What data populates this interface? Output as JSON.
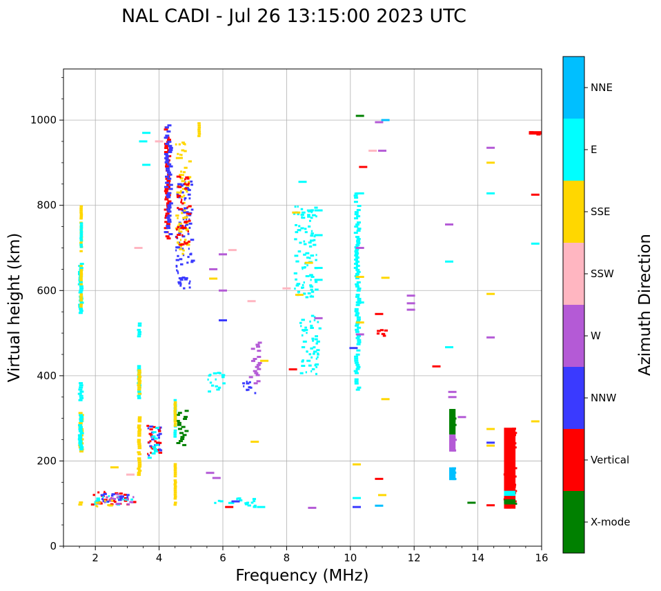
{
  "chart_data": {
    "type": "scatter",
    "title": "NAL CADI - Jul 26 13:15:00 2023 UTC",
    "xlabel": "Frequency (MHz)",
    "ylabel": "Virtual height (km)",
    "xlim": [
      1,
      16
    ],
    "ylim": [
      0,
      1120
    ],
    "xticks": [
      2,
      4,
      6,
      8,
      10,
      12,
      14,
      16
    ],
    "yticks": [
      0,
      200,
      400,
      600,
      800,
      1000
    ],
    "grid": true,
    "colorbar": {
      "label": "Azimuth Direction",
      "categories": [
        "X-mode",
        "Vertical",
        "NNW",
        "W",
        "SSW",
        "SSE",
        "E",
        "NNE"
      ],
      "colors": [
        "#008000",
        "#ff0000",
        "#3a3aff",
        "#b45ad6",
        "#ffb6c1",
        "#ffd700",
        "#00ffff",
        "#00bfff"
      ]
    },
    "echo_segments": [
      {
        "f0": 1.45,
        "f1": 1.6,
        "h0": 220,
        "h1": 315,
        "dir": "SSE"
      },
      {
        "f0": 1.45,
        "f1": 1.6,
        "h0": 225,
        "h1": 310,
        "dir": "E"
      },
      {
        "f0": 1.45,
        "f1": 1.6,
        "h0": 340,
        "h1": 390,
        "dir": "E"
      },
      {
        "f0": 1.45,
        "f1": 1.6,
        "h0": 545,
        "h1": 665,
        "dir": "E"
      },
      {
        "f0": 1.5,
        "f1": 1.6,
        "h0": 560,
        "h1": 660,
        "dir": "SSE"
      },
      {
        "f0": 1.5,
        "f1": 1.6,
        "h0": 690,
        "h1": 800,
        "dir": "SSE"
      },
      {
        "f0": 1.5,
        "f1": 1.6,
        "h0": 700,
        "h1": 760,
        "dir": "E"
      },
      {
        "f0": 1.45,
        "f1": 1.6,
        "h0": 90,
        "h1": 105,
        "dir": "SSE"
      },
      {
        "f0": 1.8,
        "f1": 3.3,
        "h0": 95,
        "h1": 130,
        "dir": "Vertical"
      },
      {
        "f0": 1.9,
        "f1": 3.2,
        "h0": 95,
        "h1": 120,
        "dir": "E"
      },
      {
        "f0": 2.0,
        "f1": 3.3,
        "h0": 95,
        "h1": 125,
        "dir": "W"
      },
      {
        "f0": 2.1,
        "f1": 3.1,
        "h0": 100,
        "h1": 125,
        "dir": "NNW"
      },
      {
        "f0": 2.0,
        "f1": 2.9,
        "h0": 90,
        "h1": 110,
        "dir": "SSE"
      },
      {
        "f0": 3.3,
        "f1": 3.42,
        "h0": 165,
        "h1": 305,
        "dir": "SSE"
      },
      {
        "f0": 3.3,
        "f1": 3.42,
        "h0": 345,
        "h1": 425,
        "dir": "E"
      },
      {
        "f0": 3.3,
        "f1": 3.42,
        "h0": 490,
        "h1": 525,
        "dir": "E"
      },
      {
        "f0": 3.3,
        "f1": 3.42,
        "h0": 355,
        "h1": 415,
        "dir": "SSE"
      },
      {
        "f0": 3.6,
        "f1": 4.1,
        "h0": 205,
        "h1": 285,
        "dir": "NNW"
      },
      {
        "f0": 3.6,
        "f1": 4.1,
        "h0": 205,
        "h1": 285,
        "dir": "Vertical"
      },
      {
        "f0": 3.6,
        "f1": 4.0,
        "h0": 200,
        "h1": 280,
        "dir": "E"
      },
      {
        "f0": 4.15,
        "f1": 4.35,
        "h0": 720,
        "h1": 990,
        "dir": "Vertical"
      },
      {
        "f0": 4.15,
        "f1": 4.4,
        "h0": 730,
        "h1": 990,
        "dir": "NNW"
      },
      {
        "f0": 4.45,
        "f1": 4.55,
        "h0": 95,
        "h1": 195,
        "dir": "SSE"
      },
      {
        "f0": 4.45,
        "f1": 4.55,
        "h0": 250,
        "h1": 350,
        "dir": "E"
      },
      {
        "f0": 4.5,
        "f1": 4.9,
        "h0": 235,
        "h1": 320,
        "dir": "X-mode"
      },
      {
        "f0": 4.45,
        "f1": 4.55,
        "h0": 280,
        "h1": 340,
        "dir": "SSE"
      },
      {
        "f0": 4.5,
        "f1": 5.1,
        "h0": 600,
        "h1": 860,
        "dir": "NNW"
      },
      {
        "f0": 4.5,
        "f1": 5.0,
        "h0": 680,
        "h1": 950,
        "dir": "SSE"
      },
      {
        "f0": 4.5,
        "f1": 5.0,
        "h0": 700,
        "h1": 870,
        "dir": "Vertical"
      },
      {
        "f0": 5.2,
        "f1": 5.3,
        "h0": 960,
        "h1": 1000,
        "dir": "SSE"
      },
      {
        "f0": 5.5,
        "f1": 6.1,
        "h0": 360,
        "h1": 410,
        "dir": "E"
      },
      {
        "f0": 6.6,
        "f1": 7.1,
        "h0": 355,
        "h1": 395,
        "dir": "NNW"
      },
      {
        "f0": 6.8,
        "f1": 7.2,
        "h0": 380,
        "h1": 480,
        "dir": "W"
      },
      {
        "f0": 5.7,
        "f1": 7.2,
        "h0": 88,
        "h1": 115,
        "dir": "E"
      },
      {
        "f0": 8.4,
        "f1": 9.1,
        "h0": 400,
        "h1": 545,
        "dir": "E"
      },
      {
        "f0": 8.2,
        "f1": 9.0,
        "h0": 580,
        "h1": 800,
        "dir": "E"
      },
      {
        "f0": 10.1,
        "f1": 10.3,
        "h0": 360,
        "h1": 830,
        "dir": "E"
      },
      {
        "f0": 10.6,
        "f1": 11.2,
        "h0": 490,
        "h1": 510,
        "dir": "Vertical"
      },
      {
        "f0": 13.1,
        "f1": 13.3,
        "h0": 262,
        "h1": 322,
        "dir": "X-mode"
      },
      {
        "f0": 13.1,
        "f1": 13.3,
        "h0": 222,
        "h1": 262,
        "dir": "W"
      },
      {
        "f0": 13.1,
        "f1": 13.3,
        "h0": 155,
        "h1": 185,
        "dir": "NNE"
      },
      {
        "f0": 14.8,
        "f1": 15.2,
        "h0": 88,
        "h1": 278,
        "dir": "Vertical"
      },
      {
        "f0": 14.8,
        "f1": 15.2,
        "h0": 118,
        "h1": 130,
        "dir": "E"
      },
      {
        "f0": 14.8,
        "f1": 15.2,
        "h0": 98,
        "h1": 110,
        "dir": "X-mode"
      },
      {
        "f0": 15.6,
        "f1": 16.0,
        "h0": 966,
        "h1": 974,
        "dir": "Vertical"
      }
    ],
    "echo_ticks": [
      {
        "f": 2.6,
        "h": 185,
        "dir": "SSE"
      },
      {
        "f": 3.1,
        "h": 168,
        "dir": "SSW"
      },
      {
        "f": 3.35,
        "h": 700,
        "dir": "SSW"
      },
      {
        "f": 3.6,
        "h": 970,
        "dir": "E"
      },
      {
        "f": 3.5,
        "h": 950,
        "dir": "E"
      },
      {
        "f": 3.6,
        "h": 895,
        "dir": "E"
      },
      {
        "f": 4.0,
        "h": 950,
        "dir": "SSW"
      },
      {
        "f": 6.0,
        "h": 530,
        "dir": "NNW"
      },
      {
        "f": 6.0,
        "h": 600,
        "dir": "W"
      },
      {
        "f": 6.3,
        "h": 695,
        "dir": "SSW"
      },
      {
        "f": 6.4,
        "h": 105,
        "dir": "NNW"
      },
      {
        "f": 8.3,
        "h": 783,
        "dir": "SSE"
      },
      {
        "f": 8.4,
        "h": 590,
        "dir": "SSE"
      },
      {
        "f": 8.2,
        "h": 415,
        "dir": "Vertical"
      },
      {
        "f": 8.8,
        "h": 90,
        "dir": "W"
      },
      {
        "f": 8.5,
        "h": 855,
        "dir": "E"
      },
      {
        "f": 8.7,
        "h": 665,
        "dir": "SSE"
      },
      {
        "f": 9.0,
        "h": 535,
        "dir": "W"
      },
      {
        "f": 10.1,
        "h": 465,
        "dir": "NNW"
      },
      {
        "f": 10.3,
        "h": 1010,
        "dir": "X-mode"
      },
      {
        "f": 10.3,
        "h": 700,
        "dir": "W"
      },
      {
        "f": 10.3,
        "h": 632,
        "dir": "SSE"
      },
      {
        "f": 10.4,
        "h": 890,
        "dir": "Vertical"
      },
      {
        "f": 10.7,
        "h": 928,
        "dir": "SSW"
      },
      {
        "f": 10.9,
        "h": 995,
        "dir": "W"
      },
      {
        "f": 11.0,
        "h": 928,
        "dir": "W"
      },
      {
        "f": 11.1,
        "h": 1000,
        "dir": "NNE"
      },
      {
        "f": 11.1,
        "h": 630,
        "dir": "SSE"
      },
      {
        "f": 11.1,
        "h": 345,
        "dir": "SSE"
      },
      {
        "f": 10.9,
        "h": 158,
        "dir": "Vertical"
      },
      {
        "f": 11.0,
        "h": 120,
        "dir": "SSE"
      },
      {
        "f": 10.9,
        "h": 95,
        "dir": "NNE"
      },
      {
        "f": 11.9,
        "h": 588,
        "dir": "W"
      },
      {
        "f": 11.9,
        "h": 570,
        "dir": "W"
      },
      {
        "f": 11.9,
        "h": 555,
        "dir": "W"
      },
      {
        "f": 12.7,
        "h": 422,
        "dir": "Vertical"
      },
      {
        "f": 13.1,
        "h": 755,
        "dir": "W"
      },
      {
        "f": 13.1,
        "h": 668,
        "dir": "E"
      },
      {
        "f": 13.1,
        "h": 467,
        "dir": "E"
      },
      {
        "f": 13.2,
        "h": 362,
        "dir": "W"
      },
      {
        "f": 13.2,
        "h": 350,
        "dir": "W"
      },
      {
        "f": 13.5,
        "h": 303,
        "dir": "W"
      },
      {
        "f": 13.8,
        "h": 102,
        "dir": "X-mode"
      },
      {
        "f": 14.4,
        "h": 935,
        "dir": "W"
      },
      {
        "f": 14.4,
        "h": 900,
        "dir": "SSE"
      },
      {
        "f": 14.4,
        "h": 828,
        "dir": "E"
      },
      {
        "f": 14.4,
        "h": 592,
        "dir": "SSE"
      },
      {
        "f": 14.4,
        "h": 490,
        "dir": "W"
      },
      {
        "f": 14.4,
        "h": 275,
        "dir": "SSE"
      },
      {
        "f": 14.4,
        "h": 243,
        "dir": "NNW"
      },
      {
        "f": 14.4,
        "h": 236,
        "dir": "SSE"
      },
      {
        "f": 14.4,
        "h": 96,
        "dir": "Vertical"
      },
      {
        "f": 15.8,
        "h": 825,
        "dir": "Vertical"
      },
      {
        "f": 15.8,
        "h": 710,
        "dir": "E"
      },
      {
        "f": 15.8,
        "h": 293,
        "dir": "SSE"
      },
      {
        "f": 10.2,
        "h": 92,
        "dir": "NNW"
      },
      {
        "f": 10.2,
        "h": 113,
        "dir": "E"
      },
      {
        "f": 10.2,
        "h": 192,
        "dir": "SSE"
      },
      {
        "f": 7.0,
        "h": 245,
        "dir": "SSE"
      },
      {
        "f": 7.3,
        "h": 435,
        "dir": "SSE"
      },
      {
        "f": 8.0,
        "h": 605,
        "dir": "SSW"
      },
      {
        "f": 9.0,
        "h": 730,
        "dir": "E"
      },
      {
        "f": 9.0,
        "h": 625,
        "dir": "E"
      },
      {
        "f": 9.0,
        "h": 653,
        "dir": "E"
      },
      {
        "f": 9.0,
        "h": 788,
        "dir": "E"
      },
      {
        "f": 10.3,
        "h": 828,
        "dir": "E"
      },
      {
        "f": 10.3,
        "h": 572,
        "dir": "E"
      },
      {
        "f": 10.3,
        "h": 525,
        "dir": "SSE"
      },
      {
        "f": 10.3,
        "h": 497,
        "dir": "W"
      },
      {
        "f": 10.9,
        "h": 545,
        "dir": "Vertical"
      },
      {
        "f": 6.9,
        "h": 575,
        "dir": "SSW"
      },
      {
        "f": 5.7,
        "h": 650,
        "dir": "W"
      },
      {
        "f": 5.7,
        "h": 628,
        "dir": "SSE"
      },
      {
        "f": 6.0,
        "h": 685,
        "dir": "W"
      },
      {
        "f": 5.8,
        "h": 160,
        "dir": "W"
      },
      {
        "f": 5.6,
        "h": 172,
        "dir": "W"
      },
      {
        "f": 6.2,
        "h": 92,
        "dir": "Vertical"
      },
      {
        "f": 7.2,
        "h": 92,
        "dir": "E"
      }
    ]
  }
}
